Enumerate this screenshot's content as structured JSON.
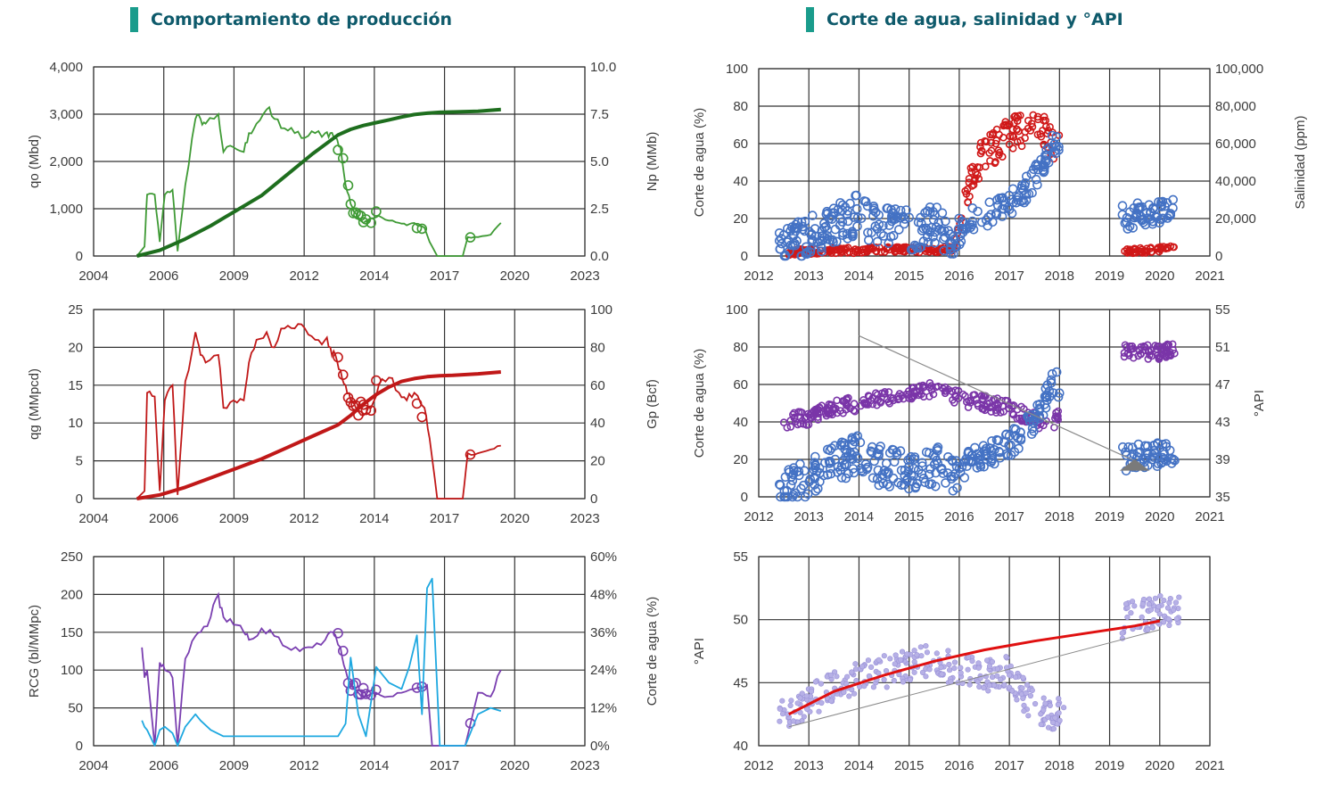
{
  "titles": {
    "left": "Comportamiento de producción",
    "right": "Corte de agua, salinidad y °API"
  },
  "colors": {
    "oil_green": "#3f9a35",
    "np_green": "#1e6e1e",
    "gas_red": "#c01818",
    "rgc_purple": "#7a3fb0",
    "water_blue": "#1ea8e0",
    "scatter_blue": "#4472c4",
    "salinity_red": "#d01818",
    "api_purple": "#7a35a8",
    "api_light": "#b6b0e6",
    "trend_red": "#e01010",
    "trend_grey": "#8a8a8a"
  },
  "chart_data": [
    {
      "id": "oil",
      "type": "line",
      "ylabel": "qo (Mbd)",
      "y2label": "Np (MMb)",
      "xticks": [
        "2004",
        "2006",
        "2009",
        "2012",
        "2014",
        "2017",
        "2020",
        "2023"
      ],
      "yticks": [
        "0",
        "1,000",
        "2,000",
        "3,000",
        "4,000"
      ],
      "y2ticks": [
        "0.0",
        "2.5",
        "5.0",
        "7.5",
        "10.0"
      ],
      "xlim": [
        2003.9,
        2023.2
      ],
      "ylim": [
        0,
        4000
      ],
      "y2lim": [
        0,
        10
      ],
      "series": [
        {
          "role": "qo",
          "axis": "y",
          "x": [
            2005.6,
            2005.9,
            2006.0,
            2006.3,
            2006.5,
            2006.7,
            2007.0,
            2007.2,
            2007.5,
            2007.9,
            2008.1,
            2008.3,
            2008.8,
            2009.0,
            2009.4,
            2009.8,
            2010.0,
            2010.3,
            2010.7,
            2011.0,
            2011.4,
            2011.8,
            2012.2,
            2012.6,
            2013.0,
            2013.2,
            2013.4,
            2013.6,
            2013.8,
            2014.0,
            2014.2,
            2014.5,
            2014.8,
            2015.1,
            2015.5,
            2015.9,
            2016.2,
            2016.5,
            2016.9,
            2017.1,
            2017.4,
            2018.0,
            2018.4,
            2018.6,
            2019.0,
            2019.5,
            2019.9
          ],
          "y": [
            0,
            200,
            1300,
            1300,
            300,
            1300,
            1400,
            100,
            1500,
            2900,
            2900,
            2800,
            3000,
            2200,
            2300,
            2200,
            2600,
            2800,
            3100,
            2900,
            2700,
            2600,
            2500,
            2600,
            2600,
            2600,
            2500,
            2300,
            1500,
            1100,
            900,
            700,
            800,
            850,
            750,
            700,
            650,
            700,
            600,
            300,
            0,
            0,
            0,
            400,
            400,
            450,
            700
          ]
        },
        {
          "role": "Np",
          "axis": "y2",
          "x": [
            2005.6,
            2006.5,
            2007.5,
            2008.5,
            2009.5,
            2010.5,
            2011.5,
            2012.5,
            2013.5,
            2014.0,
            2014.5,
            2015.0,
            2015.5,
            2016.0,
            2016.5,
            2017.0,
            2017.5,
            2018.0,
            2019.0,
            2019.9
          ],
          "y": [
            0,
            0.3,
            0.9,
            1.6,
            2.4,
            3.2,
            4.3,
            5.4,
            6.4,
            6.7,
            6.9,
            7.05,
            7.2,
            7.35,
            7.48,
            7.55,
            7.6,
            7.62,
            7.65,
            7.75
          ]
        }
      ]
    },
    {
      "id": "gas",
      "type": "line",
      "ylabel": "qg (MMpcd)",
      "y2label": "Gp (Bcf)",
      "xticks": [
        "2004",
        "2006",
        "2009",
        "2012",
        "2014",
        "2017",
        "2020",
        "2023"
      ],
      "yticks": [
        "0",
        "5",
        "10",
        "15",
        "20",
        "25"
      ],
      "y2ticks": [
        "0",
        "20",
        "40",
        "60",
        "80",
        "100"
      ],
      "xlim": [
        2003.9,
        2023.2
      ],
      "ylim": [
        0,
        25
      ],
      "y2lim": [
        0,
        100
      ],
      "series": [
        {
          "role": "qg",
          "axis": "y",
          "x": [
            2005.6,
            2005.9,
            2006.0,
            2006.3,
            2006.5,
            2006.7,
            2007.0,
            2007.2,
            2007.5,
            2007.9,
            2008.1,
            2008.3,
            2008.8,
            2009.0,
            2009.4,
            2009.8,
            2010.0,
            2010.3,
            2010.7,
            2011.0,
            2011.4,
            2011.8,
            2012.2,
            2012.6,
            2013.0,
            2013.2,
            2013.4,
            2013.6,
            2013.8,
            2014.0,
            2014.2,
            2014.5,
            2014.8,
            2015.1,
            2015.5,
            2015.9,
            2016.2,
            2016.5,
            2016.9,
            2017.1,
            2017.4,
            2018.0,
            2018.4,
            2018.6,
            2019.0,
            2019.5,
            2019.9
          ],
          "y": [
            0,
            1,
            14,
            13.5,
            1,
            13,
            15,
            0.5,
            15.5,
            22,
            19,
            18,
            19,
            12,
            13,
            13,
            18,
            21,
            22,
            20,
            22.5,
            22.5,
            22.5,
            21,
            21,
            20,
            19,
            17,
            15,
            13,
            12,
            11,
            12,
            15,
            16,
            14,
            13,
            14,
            12,
            8,
            0,
            0,
            0,
            6,
            6,
            6.5,
            7
          ]
        },
        {
          "role": "Gp",
          "axis": "y2",
          "x": [
            2005.6,
            2006.5,
            2007.5,
            2008.5,
            2009.5,
            2010.5,
            2011.5,
            2012.5,
            2013.5,
            2014.0,
            2014.5,
            2015.0,
            2015.5,
            2016.0,
            2016.5,
            2017.0,
            2017.5,
            2018.0,
            2019.0,
            2019.9
          ],
          "y": [
            0,
            2,
            6,
            11,
            16,
            21,
            27,
            33,
            39,
            44,
            50,
            55,
            59,
            62,
            63.5,
            64.5,
            65,
            65.2,
            66,
            67
          ]
        }
      ]
    },
    {
      "id": "rgc",
      "type": "line",
      "ylabel": "RCG (bl/MMpc)",
      "y2label": "Corte de agua (%)",
      "xticks": [
        "2004",
        "2006",
        "2009",
        "2012",
        "2014",
        "2017",
        "2020",
        "2023"
      ],
      "yticks": [
        "0",
        "50",
        "100",
        "150",
        "200",
        "250"
      ],
      "y2ticks": [
        "0%",
        "12%",
        "24%",
        "36%",
        "48%",
        "60%"
      ],
      "xlim": [
        2003.9,
        2023.2
      ],
      "ylim": [
        0,
        250
      ],
      "y2lim": [
        0,
        60
      ],
      "series": [
        {
          "role": "RCG",
          "axis": "y",
          "x": [
            2005.8,
            2005.9,
            2006.0,
            2006.3,
            2006.5,
            2006.7,
            2007.0,
            2007.2,
            2007.5,
            2007.9,
            2008.1,
            2008.5,
            2008.8,
            2009.0,
            2009.4,
            2009.8,
            2010.0,
            2010.5,
            2011.0,
            2011.5,
            2012.0,
            2012.5,
            2013.0,
            2013.3,
            2013.6,
            2013.8,
            2014.0,
            2014.3,
            2014.6,
            2015.0,
            2015.5,
            2016.0,
            2016.5,
            2017.0,
            2017.2,
            2017.5,
            2018.5,
            2019.0,
            2019.5,
            2019.9
          ],
          "y": [
            130,
            90,
            100,
            0,
            110,
            100,
            90,
            0,
            115,
            145,
            150,
            170,
            200,
            170,
            160,
            150,
            140,
            155,
            145,
            130,
            125,
            130,
            140,
            150,
            130,
            100,
            80,
            70,
            65,
            70,
            65,
            70,
            75,
            80,
            0,
            0,
            0,
            70,
            65,
            100
          ]
        },
        {
          "role": "Corte de agua",
          "axis": "y2",
          "x": [
            2005.8,
            2005.9,
            2006.0,
            2006.3,
            2006.5,
            2006.7,
            2007.0,
            2007.2,
            2007.5,
            2007.9,
            2008.1,
            2008.5,
            2009.0,
            2009.5,
            2010.0,
            2011.0,
            2012.0,
            2013.0,
            2013.5,
            2013.8,
            2014.0,
            2014.3,
            2014.6,
            2015.0,
            2015.5,
            2016.0,
            2016.3,
            2016.6,
            2016.8,
            2017.0,
            2017.2,
            2017.5,
            2018.5,
            2019.0,
            2019.5,
            2019.9
          ],
          "y": [
            8,
            6,
            5,
            0,
            5,
            6,
            4,
            0,
            6,
            10,
            8,
            5,
            3,
            3,
            3,
            3,
            3,
            3,
            3,
            7,
            28,
            10,
            3,
            25,
            20,
            18,
            25,
            35,
            10,
            50,
            53,
            0,
            0,
            10,
            12,
            11
          ]
        }
      ]
    },
    {
      "id": "salinity",
      "type": "scatter",
      "ylabel": "Corte de agua (%)",
      "y2label": "Salinidad (ppm)",
      "xticks": [
        "2012",
        "2013",
        "2014",
        "2015",
        "2016",
        "2017",
        "2018",
        "2019",
        "2020",
        "2021"
      ],
      "yticks": [
        "0",
        "20",
        "40",
        "60",
        "80",
        "100"
      ],
      "y2ticks": [
        "0",
        "20,000",
        "40,000",
        "60,000",
        "80,000",
        "100,000"
      ],
      "xlim": [
        2012,
        2021
      ],
      "ylim": [
        0,
        100
      ],
      "y2lim": [
        0,
        100000
      ],
      "series": [
        {
          "role": "Corte de agua",
          "axis": "y",
          "x": [
            2012.4,
            2013.0,
            2013.3,
            2013.5,
            2013.8,
            2014.0,
            2014.3,
            2014.6,
            2015.0,
            2015.3,
            2015.6,
            2015.9,
            2016.2,
            2016.5,
            2016.8,
            2017.0,
            2017.3,
            2017.6,
            2017.9,
            2019.3,
            2019.6,
            2020.0,
            2020.3
          ],
          "y": [
            3,
            10,
            14,
            18,
            20,
            22,
            18,
            15,
            14,
            15,
            16,
            8,
            20,
            22,
            25,
            28,
            35,
            45,
            62,
            20,
            22,
            23,
            24
          ]
        },
        {
          "role": "Salinidad",
          "axis": "y2",
          "x": [
            2012.6,
            2013.0,
            2013.5,
            2014.0,
            2014.5,
            2015.0,
            2015.5,
            2015.9,
            2016.2,
            2016.5,
            2016.8,
            2017.0,
            2017.3,
            2017.6,
            2017.9,
            2019.3,
            2019.6,
            2020.0,
            2020.3
          ],
          "y": [
            2000,
            2500,
            3000,
            3000,
            3500,
            3500,
            3000,
            4000,
            40000,
            55000,
            60000,
            65000,
            68000,
            70000,
            60000,
            3000,
            3000,
            3500,
            4000
          ]
        }
      ]
    },
    {
      "id": "api_water",
      "type": "scatter",
      "ylabel": "Corte de agua (%)",
      "y2label": "°API",
      "xticks": [
        "2012",
        "2013",
        "2014",
        "2015",
        "2016",
        "2017",
        "2018",
        "2019",
        "2020",
        "2021"
      ],
      "yticks": [
        "0",
        "20",
        "40",
        "60",
        "80",
        "100"
      ],
      "y2ticks": [
        "35",
        "39",
        "43",
        "47",
        "51",
        "55"
      ],
      "xlim": [
        2012,
        2021
      ],
      "ylim": [
        0,
        100
      ],
      "y2lim": [
        35,
        55
      ],
      "series": [
        {
          "role": "Corte de agua",
          "axis": "y",
          "x": [
            2012.4,
            2013.0,
            2013.3,
            2013.5,
            2013.8,
            2014.0,
            2014.3,
            2014.6,
            2015.0,
            2015.3,
            2015.6,
            2015.9,
            2016.2,
            2016.5,
            2016.8,
            2017.0,
            2017.3,
            2017.6,
            2017.9,
            2019.3,
            2019.6,
            2020.0,
            2020.3
          ],
          "y": [
            3,
            10,
            14,
            18,
            20,
            22,
            18,
            15,
            14,
            15,
            16,
            8,
            20,
            22,
            25,
            28,
            35,
            45,
            62,
            20,
            22,
            23,
            24
          ]
        },
        {
          "role": "°API",
          "axis": "y2",
          "x": [
            2012.5,
            2013.0,
            2013.5,
            2014.0,
            2014.5,
            2015.0,
            2015.5,
            2016.0,
            2016.5,
            2017.0,
            2017.4,
            2017.8,
            2019.3,
            2019.6,
            2020.0,
            2020.3
          ],
          "y": [
            43,
            43.5,
            44.5,
            45,
            45.5,
            46,
            46.5,
            45.5,
            45,
            44.5,
            43.5,
            42.5,
            50.5,
            50.5,
            50.5,
            51
          ]
        }
      ]
    },
    {
      "id": "api",
      "type": "scatter",
      "ylabel": "°API",
      "xticks": [
        "2012",
        "2013",
        "2014",
        "2015",
        "2016",
        "2017",
        "2018",
        "2019",
        "2020",
        "2021"
      ],
      "yticks": [
        "40",
        "45",
        "50",
        "55"
      ],
      "xlim": [
        2012,
        2021
      ],
      "ylim": [
        40,
        55
      ],
      "series": [
        {
          "role": "°API",
          "axis": "y",
          "x": [
            2012.4,
            2012.8,
            2013.0,
            2013.2,
            2013.5,
            2013.8,
            2014.0,
            2014.3,
            2014.6,
            2015.0,
            2015.3,
            2015.6,
            2016.0,
            2016.3,
            2016.6,
            2016.9,
            2017.1,
            2017.3,
            2017.5,
            2017.8,
            2018.0,
            2019.3,
            2019.5,
            2019.7,
            2020.0,
            2020.2,
            2020.4
          ],
          "y": [
            42.5,
            43,
            43.5,
            44,
            44.8,
            45,
            45.5,
            45.5,
            46,
            46.5,
            46.8,
            46.5,
            46,
            45.8,
            45.5,
            46,
            45,
            44,
            43,
            42.5,
            42.5,
            50,
            50.5,
            50.3,
            50.8,
            50.5,
            51
          ]
        },
        {
          "role": "trend",
          "axis": "y",
          "x": [
            2012.6,
            2013.5,
            2014.5,
            2015.5,
            2016.5,
            2017.5,
            2018.5,
            2019.5,
            2020.0
          ],
          "y": [
            42.5,
            44.3,
            45.6,
            46.7,
            47.6,
            48.3,
            48.9,
            49.5,
            49.9
          ]
        }
      ]
    }
  ]
}
